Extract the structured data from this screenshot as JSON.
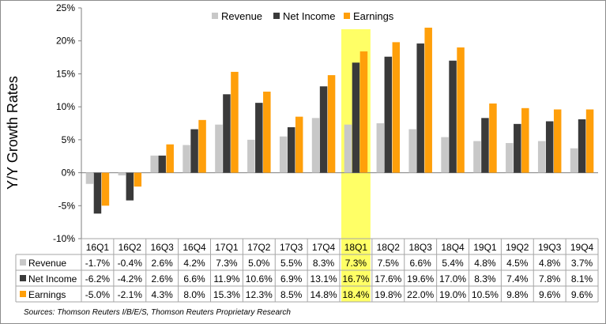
{
  "chart_data": {
    "type": "bar",
    "title": "",
    "xlabel": "",
    "ylabel": "Y/Y Growth Rates",
    "ylim": [
      -10,
      25
    ],
    "yticks": [
      "-10%",
      "-5%",
      "0%",
      "5%",
      "10%",
      "15%",
      "20%",
      "25%"
    ],
    "ytick_values": [
      -10,
      -5,
      0,
      5,
      10,
      15,
      20,
      25
    ],
    "legend_position": "top",
    "categories": [
      "16Q1",
      "16Q2",
      "16Q3",
      "16Q4",
      "17Q1",
      "17Q2",
      "17Q3",
      "17Q4",
      "18Q1",
      "18Q2",
      "18Q3",
      "18Q4",
      "19Q1",
      "19Q2",
      "19Q3",
      "19Q4"
    ],
    "highlight_category": "18Q1",
    "highlight_color": "#ffff66",
    "series": [
      {
        "name": "Revenue",
        "color": "#c8c8c8",
        "values": [
          -1.7,
          -0.4,
          2.6,
          4.2,
          7.3,
          5.0,
          5.5,
          8.3,
          7.3,
          7.5,
          6.6,
          5.4,
          4.8,
          4.5,
          4.8,
          3.7
        ],
        "labels": [
          "-1.7%",
          "-0.4%",
          "2.6%",
          "4.2%",
          "7.3%",
          "5.0%",
          "5.5%",
          "8.3%",
          "7.3%",
          "7.5%",
          "6.6%",
          "5.4%",
          "4.8%",
          "4.5%",
          "4.8%",
          "3.7%"
        ]
      },
      {
        "name": "Net Income",
        "color": "#3a3a3a",
        "values": [
          -6.2,
          -4.2,
          2.6,
          6.6,
          11.9,
          10.6,
          6.9,
          13.1,
          16.7,
          17.6,
          19.6,
          17.0,
          8.3,
          7.4,
          7.8,
          8.1
        ],
        "labels": [
          "-6.2%",
          "-4.2%",
          "2.6%",
          "6.6%",
          "11.9%",
          "10.6%",
          "6.9%",
          "13.1%",
          "16.7%",
          "17.6%",
          "19.6%",
          "17.0%",
          "8.3%",
          "7.4%",
          "7.8%",
          "8.1%"
        ]
      },
      {
        "name": "Earnings",
        "color": "#ff9f0a",
        "values": [
          -5.0,
          -2.1,
          4.3,
          8.0,
          15.3,
          12.3,
          8.5,
          14.8,
          18.4,
          19.8,
          22.0,
          19.0,
          10.5,
          9.8,
          9.6,
          9.6
        ],
        "labels": [
          "-5.0%",
          "-2.1%",
          "4.3%",
          "8.0%",
          "15.3%",
          "12.3%",
          "8.5%",
          "14.8%",
          "18.4%",
          "19.8%",
          "22.0%",
          "19.0%",
          "10.5%",
          "9.8%",
          "9.6%",
          "9.6%"
        ]
      }
    ],
    "source": "Sources: Thomson Reuters I/B/E/S, Thomson Reuters Proprietary Research"
  }
}
